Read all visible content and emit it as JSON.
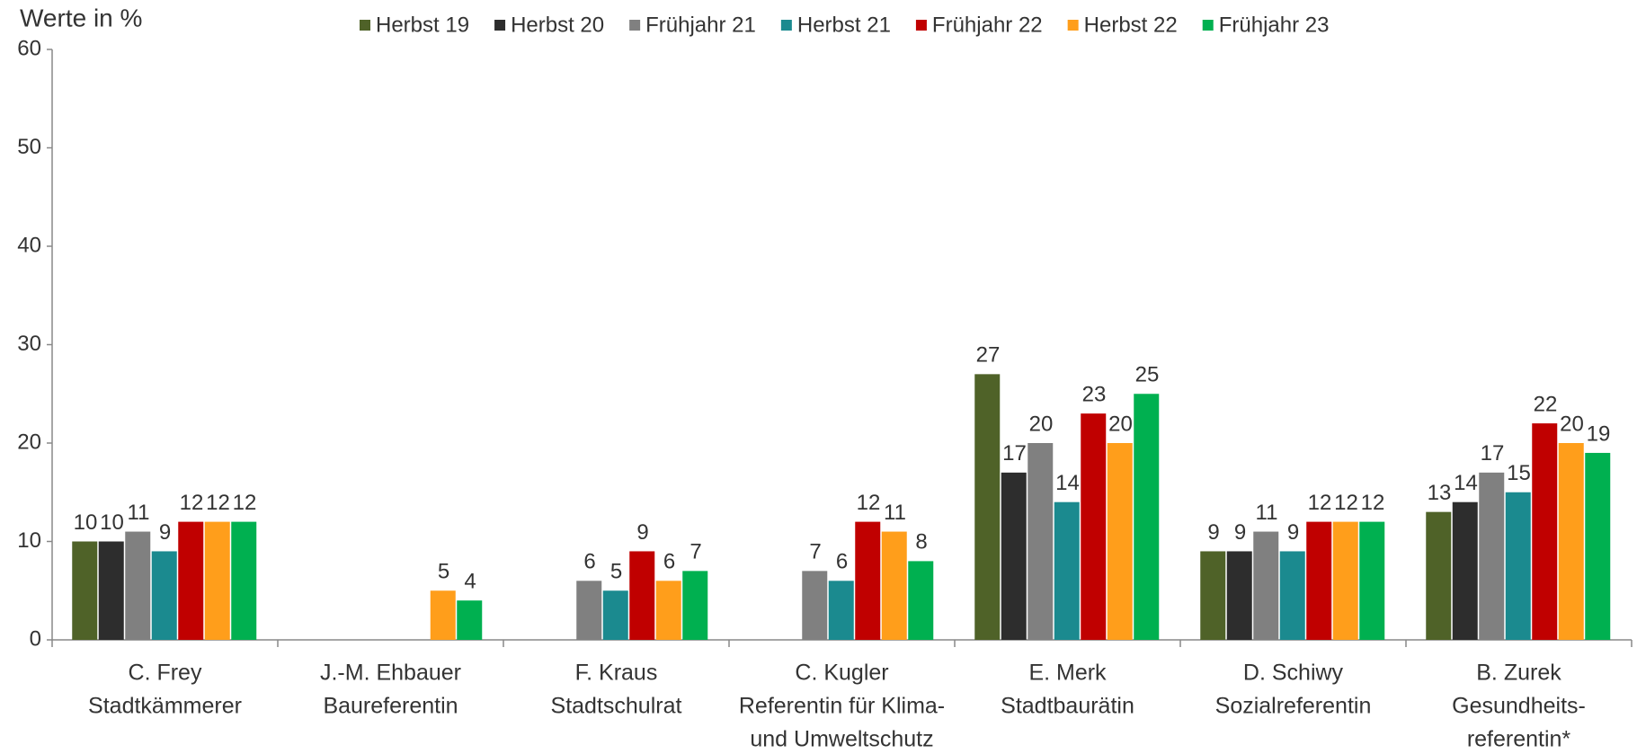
{
  "chart_data": {
    "type": "bar",
    "y_label": "Werte in %",
    "categories": [
      [
        "C. Frey",
        "Stadtkämmerer"
      ],
      [
        "J.-M. Ehbauer",
        "Baureferentin"
      ],
      [
        "F. Kraus",
        "Stadtschulrat"
      ],
      [
        "C. Kugler",
        "Referentin für Klima-",
        "und Umweltschutz"
      ],
      [
        "E. Merk",
        "Stadtbaurätin"
      ],
      [
        "D. Schiwy",
        "Sozialreferentin"
      ],
      [
        "B. Zurek",
        "Gesundheits-",
        "referentin*"
      ]
    ],
    "series": [
      {
        "name": "Herbst 19",
        "color": "#4f6228",
        "values": [
          10,
          null,
          null,
          null,
          27,
          9,
          13
        ]
      },
      {
        "name": "Herbst 20",
        "color": "#2d2d2d",
        "values": [
          10,
          null,
          null,
          null,
          17,
          9,
          14
        ]
      },
      {
        "name": "Frühjahr 21",
        "color": "#808080",
        "values": [
          11,
          null,
          6,
          7,
          20,
          11,
          17
        ]
      },
      {
        "name": "Herbst 21",
        "color": "#1b8a8f",
        "values": [
          9,
          null,
          5,
          6,
          14,
          9,
          15
        ]
      },
      {
        "name": "Frühjahr 22",
        "color": "#c00000",
        "values": [
          12,
          null,
          9,
          12,
          23,
          12,
          22
        ]
      },
      {
        "name": "Herbst 22",
        "color": "#ff9e1b",
        "values": [
          12,
          5,
          6,
          11,
          20,
          12,
          20
        ]
      },
      {
        "name": "Frühjahr 23",
        "color": "#00b050",
        "values": [
          12,
          4,
          7,
          8,
          25,
          12,
          19
        ]
      }
    ],
    "ylim": [
      0,
      60
    ],
    "yticks": [
      0,
      10,
      20,
      30,
      40,
      50,
      60
    ],
    "grid": false,
    "legend": "top"
  }
}
